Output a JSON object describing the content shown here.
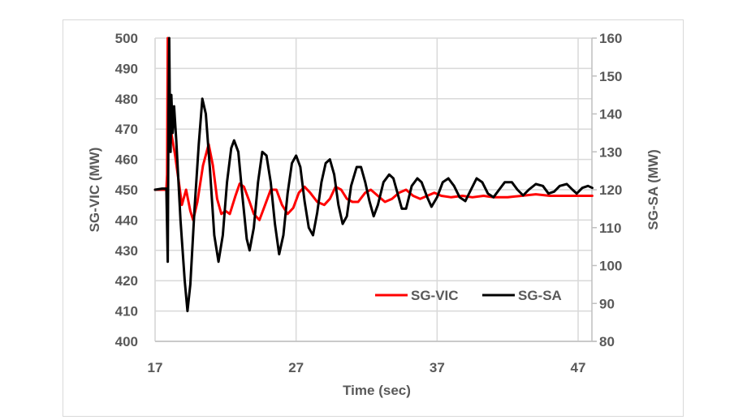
{
  "chart_data": {
    "type": "line",
    "title": "",
    "xlabel": "Time (sec)",
    "ylabel": "SG-VIC (MW)",
    "y2label": "SG-SA (MW)",
    "xlim": [
      17,
      48
    ],
    "ylim": [
      400,
      500
    ],
    "y2lim": [
      80,
      160
    ],
    "xticks": [
      17,
      27,
      37,
      47
    ],
    "yticks": [
      400,
      410,
      420,
      430,
      440,
      450,
      460,
      470,
      480,
      490,
      500
    ],
    "y2ticks": [
      80,
      90,
      100,
      110,
      120,
      130,
      140,
      150,
      160
    ],
    "grid": true,
    "legend_position": "inside-lower-right",
    "series": [
      {
        "name": "SG-VIC",
        "axis": "left",
        "color": "#ff0000",
        "points": [
          [
            17.0,
            450
          ],
          [
            17.5,
            450
          ],
          [
            17.8,
            450
          ],
          [
            17.85,
            455
          ],
          [
            17.9,
            500
          ],
          [
            17.95,
            480
          ],
          [
            18.1,
            470
          ],
          [
            18.4,
            462
          ],
          [
            18.7,
            452
          ],
          [
            18.9,
            445
          ],
          [
            19.2,
            450
          ],
          [
            19.5,
            443
          ],
          [
            19.7,
            440
          ],
          [
            20.0,
            446
          ],
          [
            20.4,
            458
          ],
          [
            20.8,
            465
          ],
          [
            21.1,
            458
          ],
          [
            21.4,
            447
          ],
          [
            21.7,
            442
          ],
          [
            22.0,
            443
          ],
          [
            22.3,
            442
          ],
          [
            22.7,
            448
          ],
          [
            23.0,
            452
          ],
          [
            23.3,
            451
          ],
          [
            23.7,
            446
          ],
          [
            24.0,
            442
          ],
          [
            24.4,
            440
          ],
          [
            24.8,
            445
          ],
          [
            25.2,
            450
          ],
          [
            25.6,
            450
          ],
          [
            26.0,
            445
          ],
          [
            26.4,
            442
          ],
          [
            26.8,
            444
          ],
          [
            27.2,
            449
          ],
          [
            27.6,
            451
          ],
          [
            28.0,
            449
          ],
          [
            28.5,
            446
          ],
          [
            29.0,
            445
          ],
          [
            29.4,
            447
          ],
          [
            29.8,
            451
          ],
          [
            30.2,
            450
          ],
          [
            30.6,
            447
          ],
          [
            31.0,
            446
          ],
          [
            31.4,
            446
          ],
          [
            31.9,
            449
          ],
          [
            32.3,
            450
          ],
          [
            32.8,
            448
          ],
          [
            33.3,
            446
          ],
          [
            33.8,
            447
          ],
          [
            34.3,
            449
          ],
          [
            34.8,
            450
          ],
          [
            35.3,
            448
          ],
          [
            35.8,
            447
          ],
          [
            36.3,
            448
          ],
          [
            36.8,
            449
          ],
          [
            37.3,
            448
          ],
          [
            38.0,
            447.5
          ],
          [
            38.8,
            448
          ],
          [
            39.5,
            447.5
          ],
          [
            40.3,
            448
          ],
          [
            41.0,
            447.5
          ],
          [
            42.0,
            447.5
          ],
          [
            43.0,
            448
          ],
          [
            44.0,
            448.5
          ],
          [
            45.0,
            448
          ],
          [
            46.0,
            448
          ],
          [
            47.0,
            448
          ],
          [
            48.0,
            448
          ]
        ]
      },
      {
        "name": "SG-SA",
        "axis": "right",
        "color": "#000000",
        "points": [
          [
            17.0,
            120
          ],
          [
            17.5,
            120.3
          ],
          [
            17.8,
            120.3
          ],
          [
            17.85,
            110
          ],
          [
            17.9,
            101
          ],
          [
            17.95,
            140
          ],
          [
            18.0,
            160
          ],
          [
            18.05,
            142
          ],
          [
            18.1,
            130
          ],
          [
            18.15,
            145
          ],
          [
            18.25,
            135
          ],
          [
            18.35,
            142
          ],
          [
            18.5,
            133
          ],
          [
            18.8,
            112
          ],
          [
            19.1,
            96
          ],
          [
            19.3,
            88
          ],
          [
            19.5,
            95
          ],
          [
            19.8,
            115
          ],
          [
            20.1,
            132
          ],
          [
            20.35,
            144
          ],
          [
            20.6,
            140
          ],
          [
            20.9,
            125
          ],
          [
            21.2,
            108
          ],
          [
            21.5,
            101
          ],
          [
            21.8,
            108
          ],
          [
            22.1,
            122
          ],
          [
            22.4,
            131
          ],
          [
            22.6,
            133
          ],
          [
            22.9,
            130
          ],
          [
            23.2,
            118
          ],
          [
            23.5,
            107
          ],
          [
            23.7,
            104
          ],
          [
            24.0,
            110
          ],
          [
            24.3,
            122
          ],
          [
            24.6,
            130
          ],
          [
            24.9,
            129
          ],
          [
            25.2,
            122
          ],
          [
            25.5,
            111
          ],
          [
            25.8,
            103
          ],
          [
            26.1,
            108
          ],
          [
            26.4,
            119
          ],
          [
            26.7,
            127
          ],
          [
            27.0,
            129
          ],
          [
            27.3,
            126
          ],
          [
            27.6,
            117
          ],
          [
            27.9,
            110
          ],
          [
            28.2,
            108
          ],
          [
            28.5,
            114
          ],
          [
            28.8,
            122
          ],
          [
            29.1,
            127
          ],
          [
            29.4,
            128
          ],
          [
            29.7,
            124
          ],
          [
            30.0,
            116
          ],
          [
            30.3,
            111
          ],
          [
            30.6,
            113
          ],
          [
            30.9,
            121
          ],
          [
            31.3,
            126
          ],
          [
            31.6,
            126
          ],
          [
            31.9,
            122
          ],
          [
            32.2,
            117
          ],
          [
            32.5,
            113
          ],
          [
            32.8,
            116
          ],
          [
            33.2,
            122
          ],
          [
            33.6,
            124
          ],
          [
            33.9,
            123
          ],
          [
            34.2,
            119
          ],
          [
            34.5,
            115
          ],
          [
            34.8,
            115
          ],
          [
            35.2,
            121
          ],
          [
            35.6,
            123
          ],
          [
            35.9,
            122
          ],
          [
            36.3,
            118
          ],
          [
            36.6,
            115.5
          ],
          [
            37.0,
            118
          ],
          [
            37.4,
            122
          ],
          [
            37.8,
            123
          ],
          [
            38.2,
            121
          ],
          [
            38.6,
            118
          ],
          [
            39.0,
            117
          ],
          [
            39.4,
            120
          ],
          [
            39.8,
            123
          ],
          [
            40.2,
            122
          ],
          [
            40.6,
            119
          ],
          [
            41.0,
            118
          ],
          [
            41.4,
            120
          ],
          [
            41.8,
            122
          ],
          [
            42.3,
            122
          ],
          [
            42.7,
            120
          ],
          [
            43.1,
            118.5
          ],
          [
            43.5,
            120
          ],
          [
            44.0,
            121.5
          ],
          [
            44.5,
            121
          ],
          [
            44.9,
            119
          ],
          [
            45.3,
            119.5
          ],
          [
            45.7,
            121
          ],
          [
            46.2,
            121.5
          ],
          [
            46.6,
            120
          ],
          [
            46.9,
            119
          ],
          [
            47.3,
            120.5
          ],
          [
            47.7,
            121
          ],
          [
            48.0,
            120.5
          ]
        ]
      }
    ]
  },
  "labels": {
    "xlabel": "Time (sec)",
    "ylabel": "SG-VIC (MW)",
    "y2label": "SG-SA (MW)",
    "legend": [
      "SG-VIC",
      "SG-SA"
    ]
  }
}
